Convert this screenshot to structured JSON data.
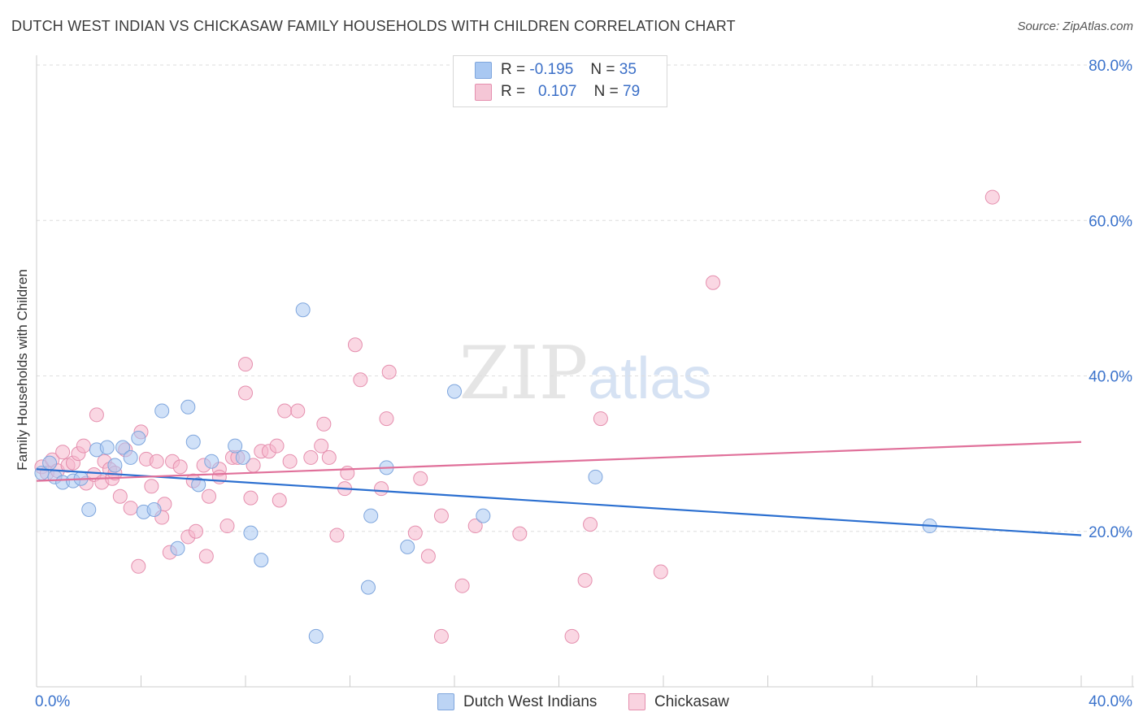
{
  "chart_data": {
    "type": "scatter",
    "title": "DUTCH WEST INDIAN VS CHICKASAW FAMILY HOUSEHOLDS WITH CHILDREN CORRELATION CHART",
    "source": "Source: ZipAtlas.com",
    "xlabel": "",
    "ylabel": "Family Households with Children",
    "xlim": [
      0,
      40
    ],
    "ylim": [
      0,
      80
    ],
    "x_tick_labels": [
      "0.0%",
      "40.0%"
    ],
    "y_ticks": [
      20,
      40,
      60,
      80
    ],
    "y_tick_labels": [
      "20.0%",
      "40.0%",
      "60.0%",
      "80.0%"
    ],
    "watermark": "ZIPatlas",
    "legend_stats": [
      {
        "r_label": "R =",
        "r_value": "-0.195",
        "n_label": "N =",
        "n_value": "35"
      },
      {
        "r_label": "R =",
        "r_value": "0.107",
        "n_label": "N =",
        "n_value": "79"
      }
    ],
    "series": [
      {
        "name": "Dutch West Indians",
        "color": "#a9c8f2",
        "stroke": "#7fa6dd",
        "trend_color": "#2b6fd0",
        "trend": {
          "x": [
            0,
            40
          ],
          "y": [
            28.0,
            19.5
          ]
        },
        "points": [
          [
            0.2,
            27.5
          ],
          [
            0.5,
            28.8
          ],
          [
            0.7,
            27.0
          ],
          [
            1.0,
            26.3
          ],
          [
            1.4,
            26.5
          ],
          [
            1.7,
            26.8
          ],
          [
            2.0,
            22.8
          ],
          [
            2.3,
            30.5
          ],
          [
            2.7,
            30.8
          ],
          [
            3.0,
            28.5
          ],
          [
            3.3,
            30.8
          ],
          [
            3.6,
            29.5
          ],
          [
            3.9,
            32.0
          ],
          [
            4.1,
            22.5
          ],
          [
            4.5,
            22.8
          ],
          [
            4.8,
            35.5
          ],
          [
            5.4,
            17.8
          ],
          [
            5.8,
            36.0
          ],
          [
            6.0,
            31.5
          ],
          [
            6.2,
            26.0
          ],
          [
            6.7,
            29.0
          ],
          [
            7.6,
            31.0
          ],
          [
            7.9,
            29.5
          ],
          [
            8.2,
            19.8
          ],
          [
            8.6,
            16.3
          ],
          [
            10.2,
            48.5
          ],
          [
            10.7,
            6.5
          ],
          [
            12.7,
            12.8
          ],
          [
            12.8,
            22.0
          ],
          [
            13.4,
            28.2
          ],
          [
            14.2,
            18.0
          ],
          [
            16.0,
            38.0
          ],
          [
            17.1,
            22.0
          ],
          [
            21.4,
            27.0
          ],
          [
            34.2,
            20.7
          ]
        ]
      },
      {
        "name": "Chickasaw",
        "color": "#f5b7cc",
        "stroke": "#e58fae",
        "trend_color": "#e0709a",
        "trend": {
          "x": [
            0,
            40
          ],
          "y": [
            26.5,
            31.5
          ]
        },
        "points": [
          [
            0.2,
            28.3
          ],
          [
            0.4,
            27.5
          ],
          [
            0.6,
            29.2
          ],
          [
            0.8,
            27.8
          ],
          [
            1.0,
            30.2
          ],
          [
            1.2,
            28.5
          ],
          [
            1.4,
            28.8
          ],
          [
            1.6,
            30.0
          ],
          [
            1.8,
            31.0
          ],
          [
            1.9,
            26.2
          ],
          [
            2.2,
            27.3
          ],
          [
            2.3,
            35.0
          ],
          [
            2.5,
            26.3
          ],
          [
            2.6,
            29.0
          ],
          [
            2.8,
            28.0
          ],
          [
            2.9,
            26.8
          ],
          [
            3.0,
            27.5
          ],
          [
            3.2,
            24.5
          ],
          [
            3.4,
            30.5
          ],
          [
            3.6,
            23.0
          ],
          [
            3.9,
            15.5
          ],
          [
            4.0,
            32.8
          ],
          [
            4.2,
            29.3
          ],
          [
            4.4,
            25.8
          ],
          [
            4.6,
            29.0
          ],
          [
            4.8,
            21.8
          ],
          [
            4.9,
            23.5
          ],
          [
            5.1,
            17.3
          ],
          [
            5.2,
            29.0
          ],
          [
            5.5,
            28.3
          ],
          [
            5.8,
            19.3
          ],
          [
            6.0,
            26.5
          ],
          [
            6.1,
            20.0
          ],
          [
            6.4,
            28.5
          ],
          [
            6.5,
            16.8
          ],
          [
            6.6,
            24.5
          ],
          [
            7.0,
            28.0
          ],
          [
            7.0,
            27.0
          ],
          [
            7.3,
            20.7
          ],
          [
            7.5,
            29.5
          ],
          [
            7.7,
            29.5
          ],
          [
            8.0,
            37.8
          ],
          [
            8.0,
            41.5
          ],
          [
            8.2,
            24.3
          ],
          [
            8.3,
            28.5
          ],
          [
            8.6,
            30.3
          ],
          [
            8.9,
            30.3
          ],
          [
            9.2,
            31.0
          ],
          [
            9.3,
            24.0
          ],
          [
            9.5,
            35.5
          ],
          [
            9.7,
            29.0
          ],
          [
            10.0,
            35.5
          ],
          [
            10.5,
            29.5
          ],
          [
            10.9,
            31.0
          ],
          [
            11.0,
            33.8
          ],
          [
            11.2,
            29.5
          ],
          [
            11.5,
            19.5
          ],
          [
            11.8,
            25.5
          ],
          [
            11.9,
            27.5
          ],
          [
            12.2,
            44.0
          ],
          [
            12.4,
            39.5
          ],
          [
            13.2,
            25.5
          ],
          [
            13.4,
            34.5
          ],
          [
            13.5,
            40.5
          ],
          [
            14.5,
            19.8
          ],
          [
            14.7,
            26.8
          ],
          [
            15.0,
            16.8
          ],
          [
            15.5,
            6.5
          ],
          [
            15.5,
            22.0
          ],
          [
            16.3,
            13.0
          ],
          [
            16.8,
            20.7
          ],
          [
            18.5,
            19.7
          ],
          [
            20.5,
            6.5
          ],
          [
            21.0,
            13.7
          ],
          [
            21.2,
            20.9
          ],
          [
            21.6,
            34.5
          ],
          [
            23.9,
            14.8
          ],
          [
            25.9,
            52.0
          ],
          [
            36.6,
            63.0
          ]
        ]
      }
    ]
  }
}
